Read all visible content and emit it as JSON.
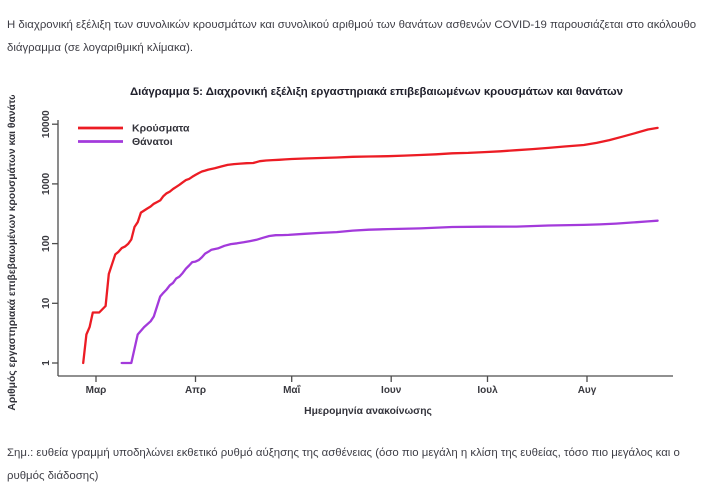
{
  "intro": "Η διαχρονική εξέλιξη των συνολικών κρουσμάτων και συνολικού αριθμού των θανάτων ασθενών COVID-19 παρουσιάζεται στο ακόλουθο διάγραμμα (σε λογαριθμική κλίμακα).",
  "chart_title": "Διάγραμμα 5: Διαχρονική εξέλιξη εργαστηριακά επιβεβαιωμένων κρουσμάτων και θανάτων",
  "note": "Σημ.: ευθεία γραμμή υποδηλώνει εκθετικό ρυθμό αύξησης της ασθένειας (όσο πιο μεγάλη η κλίση της ευθείας, τόσο πιο μεγάλος και ο ρυθμός διάδοσης)",
  "chart_data": {
    "type": "line",
    "title": "Διάγραμμα 5: Διαχρονική εξέλιξη εργαστηριακά επιβεβαιωμένων κρουσμάτων και θανάτων",
    "xlabel": "Ημερομηνία ανακοίνωσης",
    "ylabel": "Αριθμός εργαστηριακά επιβεβαιωμένων κρουσμάτων και θανάτων",
    "y_scale": "log10",
    "ylim": [
      1,
      10000
    ],
    "y_ticks": [
      1,
      10,
      100,
      1000,
      10000
    ],
    "x_encoding": "days since 1 Mar 2020",
    "x_ticks": [
      {
        "day": 0,
        "label": "Μαρ"
      },
      {
        "day": 31,
        "label": "Απρ"
      },
      {
        "day": 61,
        "label": "Μαΐ"
      },
      {
        "day": 92,
        "label": "Ιουν"
      },
      {
        "day": 122,
        "label": "Ιουλ"
      },
      {
        "day": 153,
        "label": "Αυγ"
      }
    ],
    "grid": false,
    "legend_position": "top-left",
    "series": [
      {
        "name": "Κρούσματα",
        "color": "#ec1c24",
        "points": [
          [
            -4,
            1
          ],
          [
            -3,
            3
          ],
          [
            -2,
            4
          ],
          [
            -1,
            7
          ],
          [
            1,
            7
          ],
          [
            3,
            9
          ],
          [
            4,
            31
          ],
          [
            5,
            45
          ],
          [
            6,
            66
          ],
          [
            7,
            73
          ],
          [
            8,
            84
          ],
          [
            9,
            89
          ],
          [
            10,
            99
          ],
          [
            11,
            117
          ],
          [
            12,
            190
          ],
          [
            13,
            228
          ],
          [
            14,
            331
          ],
          [
            16,
            387
          ],
          [
            17,
            418
          ],
          [
            18,
            464
          ],
          [
            19,
            495
          ],
          [
            20,
            530
          ],
          [
            21,
            624
          ],
          [
            22,
            695
          ],
          [
            23,
            743
          ],
          [
            24,
            821
          ],
          [
            25,
            892
          ],
          [
            26,
            966
          ],
          [
            27,
            1061
          ],
          [
            28,
            1156
          ],
          [
            29,
            1212
          ],
          [
            30,
            1314
          ],
          [
            31,
            1415
          ],
          [
            32,
            1514
          ],
          [
            33,
            1613
          ],
          [
            34,
            1673
          ],
          [
            35,
            1735
          ],
          [
            37,
            1832
          ],
          [
            39,
            1955
          ],
          [
            41,
            2081
          ],
          [
            43,
            2145
          ],
          [
            45,
            2192
          ],
          [
            47,
            2224
          ],
          [
            49,
            2235
          ],
          [
            51,
            2401
          ],
          [
            53,
            2463
          ],
          [
            55,
            2506
          ],
          [
            57,
            2534
          ],
          [
            59,
            2576
          ],
          [
            61,
            2612
          ],
          [
            65,
            2663
          ],
          [
            70,
            2716
          ],
          [
            75,
            2770
          ],
          [
            80,
            2840
          ],
          [
            85,
            2878
          ],
          [
            91,
            2915
          ],
          [
            96,
            2980
          ],
          [
            101,
            3049
          ],
          [
            106,
            3134
          ],
          [
            111,
            3256
          ],
          [
            116,
            3310
          ],
          [
            121,
            3409
          ],
          [
            126,
            3511
          ],
          [
            131,
            3672
          ],
          [
            136,
            3826
          ],
          [
            141,
            4007
          ],
          [
            146,
            4227
          ],
          [
            152,
            4477
          ],
          [
            156,
            4855
          ],
          [
            160,
            5421
          ],
          [
            164,
            6177
          ],
          [
            168,
            7075
          ],
          [
            172,
            8138
          ],
          [
            175,
            8664
          ]
        ]
      },
      {
        "name": "Θάνατοι",
        "color": "#a33adb",
        "points": [
          [
            8,
            1
          ],
          [
            11,
            1
          ],
          [
            13,
            3
          ],
          [
            15,
            4
          ],
          [
            17,
            5
          ],
          [
            18,
            6
          ],
          [
            20,
            13
          ],
          [
            21,
            15
          ],
          [
            22,
            17
          ],
          [
            23,
            20
          ],
          [
            24,
            22
          ],
          [
            25,
            26
          ],
          [
            26,
            28
          ],
          [
            27,
            32
          ],
          [
            28,
            38
          ],
          [
            29,
            43
          ],
          [
            30,
            49
          ],
          [
            31,
            50
          ],
          [
            32,
            53
          ],
          [
            33,
            59
          ],
          [
            34,
            68
          ],
          [
            35,
            73
          ],
          [
            36,
            79
          ],
          [
            38,
            83
          ],
          [
            40,
            92
          ],
          [
            42,
            98
          ],
          [
            44,
            101
          ],
          [
            46,
            105
          ],
          [
            48,
            110
          ],
          [
            50,
            116
          ],
          [
            52,
            125
          ],
          [
            54,
            134
          ],
          [
            56,
            138
          ],
          [
            58,
            139
          ],
          [
            60,
            140
          ],
          [
            65,
            146
          ],
          [
            70,
            151
          ],
          [
            75,
            156
          ],
          [
            80,
            165
          ],
          [
            85,
            171
          ],
          [
            91,
            175
          ],
          [
            101,
            180
          ],
          [
            111,
            190
          ],
          [
            121,
            192
          ],
          [
            131,
            193
          ],
          [
            141,
            201
          ],
          [
            152,
            206
          ],
          [
            157,
            210
          ],
          [
            162,
            216
          ],
          [
            167,
            226
          ],
          [
            172,
            235
          ],
          [
            175,
            242
          ]
        ]
      }
    ]
  }
}
